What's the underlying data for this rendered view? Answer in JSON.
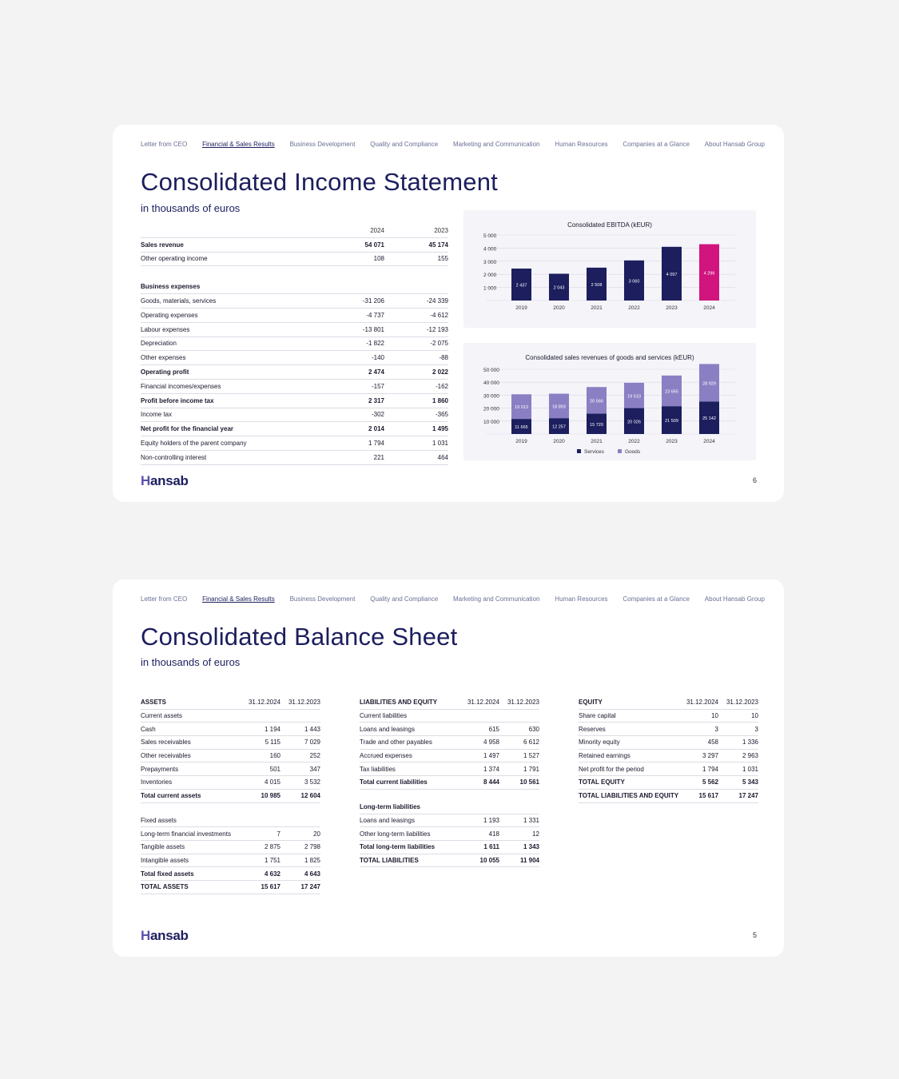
{
  "nav": [
    "Letter from CEO",
    "Financial & Sales Results",
    "Business Development",
    "Quality and Compliance",
    "Marketing and Communication",
    "Human Resources",
    "Companies at a Glance",
    "About Hansab Group"
  ],
  "nav_active": 1,
  "logo": "Hansab",
  "slide1": {
    "title": "Consolidated Income Statement",
    "subtitle": "in thousands of euros",
    "page": "6",
    "table": {
      "headers": [
        "",
        "2024",
        "2023"
      ],
      "rows": [
        {
          "label": "Sales revenue",
          "v1": "54 071",
          "v2": "45 174",
          "style": "bold"
        },
        {
          "label": "Other operating income",
          "v1": "108",
          "v2": "155",
          "style": ""
        },
        {
          "label": "",
          "v1": "",
          "v2": "",
          "style": "gap"
        },
        {
          "label": "Business expenses",
          "v1": "",
          "v2": "",
          "style": "section"
        },
        {
          "label": "Goods, materials, services",
          "v1": "-31 206",
          "v2": "-24 339",
          "style": ""
        },
        {
          "label": "Operating expenses",
          "v1": "-4 737",
          "v2": "-4 612",
          "style": ""
        },
        {
          "label": "Labour expenses",
          "v1": "-13 801",
          "v2": "-12 193",
          "style": ""
        },
        {
          "label": "Depreciation",
          "v1": "-1 822",
          "v2": "-2 075",
          "style": ""
        },
        {
          "label": "Other expenses",
          "v1": "-140",
          "v2": "-88",
          "style": ""
        },
        {
          "label": "Operating profit",
          "v1": "2 474",
          "v2": "2 022",
          "style": "bold"
        },
        {
          "label": "Financial incomes/expenses",
          "v1": "-157",
          "v2": "-162",
          "style": ""
        },
        {
          "label": "Profit before income tax",
          "v1": "2 317",
          "v2": "1 860",
          "style": "bold"
        },
        {
          "label": "Income tax",
          "v1": "-302",
          "v2": "-365",
          "style": ""
        },
        {
          "label": "Net profit for the financial year",
          "v1": "2 014",
          "v2": "1 495",
          "style": "bold"
        },
        {
          "label": "Equity holders of the parent company",
          "v1": "1 794",
          "v2": "1 031",
          "style": ""
        },
        {
          "label": "Non-controlling interest",
          "v1": "221",
          "v2": "464",
          "style": ""
        }
      ]
    }
  },
  "chart_data": [
    {
      "type": "bar",
      "title": "Consolidated EBITDA (kEUR)",
      "categories": [
        "2019",
        "2020",
        "2021",
        "2022",
        "2023",
        "2024"
      ],
      "values": [
        2437,
        2043,
        2508,
        3060,
        4097,
        4296
      ],
      "value_labels": [
        "2 437",
        "2 043",
        "2 508",
        "3 060",
        "4 097",
        "4 296"
      ],
      "ylim": [
        0,
        5000
      ],
      "yticks": [
        1000,
        2000,
        3000,
        4000,
        5000
      ],
      "ytick_labels": [
        "1 000",
        "2 000",
        "3 000",
        "4 000",
        "5 000"
      ],
      "colors": [
        "#1c1e5e",
        "#1c1e5e",
        "#1c1e5e",
        "#1c1e5e",
        "#1c1e5e",
        "#d1147e"
      ],
      "grid": true
    },
    {
      "type": "bar",
      "stacked": true,
      "title": "Consolidated sales revenues of goods and services (kEUR)",
      "categories": [
        "2019",
        "2020",
        "2021",
        "2022",
        "2023",
        "2024"
      ],
      "series": [
        {
          "name": "Services",
          "values": [
            11665,
            12257,
            15720,
            20026,
            21509,
            25142
          ],
          "labels": [
            "11 665",
            "12 257",
            "15 720",
            "20 026",
            "21 509",
            "25 142"
          ],
          "color": "#1c1e5e"
        },
        {
          "name": "Goods",
          "values": [
            19013,
            18893,
            20566,
            19510,
            23665,
            28929
          ],
          "labels": [
            "19 013",
            "18 893",
            "20 566",
            "19 510",
            "23 665",
            "28 929"
          ],
          "color": "#8b7fc4"
        }
      ],
      "ylim": [
        0,
        50000
      ],
      "yticks": [
        10000,
        20000,
        30000,
        40000,
        50000
      ],
      "ytick_labels": [
        "10 000",
        "20 000",
        "30 000",
        "40 000",
        "50 000"
      ],
      "legend": "bottom",
      "grid": true
    }
  ],
  "slide2": {
    "title": "Consolidated Balance Sheet",
    "subtitle": "in thousands of euros",
    "page": "5",
    "assets": {
      "headers": [
        "ASSETS",
        "31.12.2024",
        "31.12.2023"
      ],
      "rows": [
        {
          "label": "Current assets",
          "v1": "",
          "v2": "",
          "style": "section"
        },
        {
          "label": "Cash",
          "v1": "1 194",
          "v2": "1 443",
          "style": ""
        },
        {
          "label": "Sales receivables",
          "v1": "5 115",
          "v2": "7 029",
          "style": ""
        },
        {
          "label": "Other receivables",
          "v1": "160",
          "v2": "252",
          "style": ""
        },
        {
          "label": "Prepayments",
          "v1": "501",
          "v2": "347",
          "style": ""
        },
        {
          "label": "Inventories",
          "v1": "4 015",
          "v2": "3 532",
          "style": ""
        },
        {
          "label": "Total current assets",
          "v1": "10 985",
          "v2": "12 604",
          "style": "bold"
        },
        {
          "label": "",
          "v1": "",
          "v2": "",
          "style": "gap"
        },
        {
          "label": "Fixed assets",
          "v1": "",
          "v2": "",
          "style": "section"
        },
        {
          "label": "Long-term financial investments",
          "v1": "7",
          "v2": "20",
          "style": ""
        },
        {
          "label": "Tangible assets",
          "v1": "2 875",
          "v2": "2 798",
          "style": ""
        },
        {
          "label": "Intangible assets",
          "v1": "1 751",
          "v2": "1 825",
          "style": ""
        },
        {
          "label": "Total fixed assets",
          "v1": "4 632",
          "v2": "4 643",
          "style": "bold"
        },
        {
          "label": "TOTAL ASSETS",
          "v1": "15 617",
          "v2": "17 247",
          "style": "bold"
        }
      ]
    },
    "liabilities": {
      "headers": [
        "LIABILITIES AND EQUITY",
        "31.12.2024",
        "31.12.2023"
      ],
      "rows": [
        {
          "label": "Current liabilities",
          "v1": "",
          "v2": "",
          "style": "section"
        },
        {
          "label": "Loans and leasings",
          "v1": "615",
          "v2": "630",
          "style": ""
        },
        {
          "label": "Trade and other payables",
          "v1": "4 958",
          "v2": "6 612",
          "style": ""
        },
        {
          "label": "Accrued expenses",
          "v1": "1 497",
          "v2": "1 527",
          "style": ""
        },
        {
          "label": "Tax liabilities",
          "v1": "1 374",
          "v2": "1 791",
          "style": ""
        },
        {
          "label": "Total current liabilities",
          "v1": "8 444",
          "v2": "10 561",
          "style": "bold"
        },
        {
          "label": "",
          "v1": "",
          "v2": "",
          "style": "gap"
        },
        {
          "label": "Long-term liabilities",
          "v1": "",
          "v2": "",
          "style": "section bold"
        },
        {
          "label": "Loans and leasings",
          "v1": "1 193",
          "v2": "1 331",
          "style": ""
        },
        {
          "label": "Other long-term liabilities",
          "v1": "418",
          "v2": "12",
          "style": ""
        },
        {
          "label": "Total long-term liabilities",
          "v1": "1 611",
          "v2": "1 343",
          "style": "bold"
        },
        {
          "label": "TOTAL LIABILITIES",
          "v1": "10 055",
          "v2": "11 904",
          "style": "bold"
        }
      ]
    },
    "equity": {
      "headers": [
        "EQUITY",
        "31.12.2024",
        "31.12.2023"
      ],
      "rows": [
        {
          "label": "Share capital",
          "v1": "10",
          "v2": "10",
          "style": ""
        },
        {
          "label": "Reserves",
          "v1": "3",
          "v2": "3",
          "style": ""
        },
        {
          "label": "Minority equity",
          "v1": "458",
          "v2": "1 336",
          "style": ""
        },
        {
          "label": "Retained earnings",
          "v1": "3 297",
          "v2": "2 963",
          "style": ""
        },
        {
          "label": "Net profit for the period",
          "v1": "1 794",
          "v2": "1 031",
          "style": ""
        },
        {
          "label": "TOTAL EQUITY",
          "v1": "5 562",
          "v2": "5 343",
          "style": "bold"
        },
        {
          "label": "TOTAL LIABILITIES AND EQUITY",
          "v1": "15 617",
          "v2": "17 247",
          "style": "bold"
        }
      ]
    }
  }
}
